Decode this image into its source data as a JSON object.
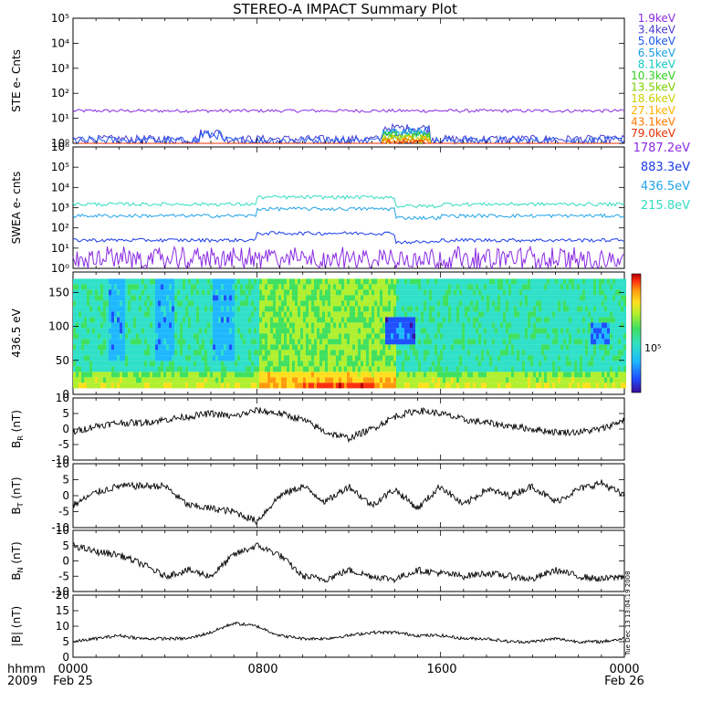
{
  "title": "STEREO-A IMPACT Summary Plot",
  "side_stamp": "Tue Dec 13 13:04:19 2008",
  "x_axis": {
    "row1_label": "hhmm",
    "row2_label": "2009",
    "ticks": [
      {
        "hhmm": "0000",
        "date": "Feb 25"
      },
      {
        "hhmm": "0800",
        "date": ""
      },
      {
        "hhmm": "1600",
        "date": ""
      },
      {
        "hhmm": "0000",
        "date": "Feb 26"
      }
    ]
  },
  "colors": {
    "ste": [
      "#8a2be2",
      "#4b3fd0",
      "#1f5bf0",
      "#1a9fe0",
      "#16c8c0",
      "#30d020",
      "#7ad000",
      "#c8d000",
      "#ffb000",
      "#ff7a00",
      "#e83000"
    ],
    "swea": [
      "#8a2be2",
      "#1a3ce8",
      "#21a3e6",
      "#32dcc0"
    ],
    "colorbar": [
      "#3a0e9a",
      "#1f50ff",
      "#1fb8ff",
      "#30e0c8",
      "#40e060",
      "#b0f030",
      "#ffe020",
      "#ff9a10",
      "#ff3010",
      "#b00000"
    ]
  },
  "chart_data": [
    {
      "type": "line",
      "panel": "ste",
      "ylabel": "STE e- Cnts",
      "yscale": "log",
      "ylim": [
        1,
        100000
      ],
      "yticks": [
        "10⁰",
        "10¹",
        "10²",
        "10³",
        "10⁴",
        "10⁵"
      ],
      "legend_placement": "right",
      "series": [
        {
          "name": "1.9keV",
          "level": 20
        },
        {
          "name": "3.4keV",
          "level": 1.5
        },
        {
          "name": "5.0keV",
          "level": 1.3
        },
        {
          "name": "6.5keV",
          "level": 1.2
        },
        {
          "name": "8.1keV",
          "level": 1.1
        },
        {
          "name": "10.3keV",
          "level": 1.05
        },
        {
          "name": "13.5keV",
          "level": 1.0
        },
        {
          "name": "18.6keV",
          "level": 1.0
        },
        {
          "name": "27.1keV",
          "level": 1.0
        },
        {
          "name": "43.1keV",
          "level": 1.0
        },
        {
          "name": "79.0keV",
          "level": 1.0
        }
      ]
    },
    {
      "type": "line",
      "panel": "swea",
      "ylabel": "SWEA e- cnts",
      "yscale": "log",
      "ylim": [
        1,
        1000000
      ],
      "yticks": [
        "10⁰",
        "10¹",
        "10²",
        "10³",
        "10⁴",
        "10⁵",
        "10⁶"
      ],
      "legend_placement": "right",
      "series": [
        {
          "name": "1787.2eV",
          "level": 3
        },
        {
          "name": "883.3eV",
          "level": 25
        },
        {
          "name": "436.5eV",
          "level": 400
        },
        {
          "name": "215.8eV",
          "level": 1500
        }
      ]
    },
    {
      "type": "heatmap",
      "panel": "pad",
      "ylabel": "436.5 eV",
      "ylim": [
        0,
        180
      ],
      "yticks": [
        "0",
        "50",
        "100",
        "150"
      ],
      "colorbar_label": "10⁵"
    },
    {
      "type": "line",
      "panel": "br",
      "ylabel": "B<sub>R</sub> (nT)",
      "ylabel_main": "B",
      "ylabel_sub": "R",
      "ylabel_unit": "(nT)",
      "ylim": [
        -10,
        10
      ],
      "yticks": [
        "-10",
        "-5",
        "0",
        "5",
        "10"
      ],
      "x_hours": [
        0,
        1,
        2,
        3,
        4,
        5,
        6,
        7,
        8,
        9,
        10,
        11,
        12,
        13,
        14,
        15,
        16,
        17,
        18,
        19,
        20,
        21,
        22,
        23,
        24
      ],
      "values": [
        -1,
        1,
        2,
        2,
        3,
        4,
        5,
        4,
        6,
        5,
        3,
        -1,
        -3,
        0,
        4,
        6,
        5,
        3,
        2,
        1,
        0,
        -1,
        -1,
        0,
        3
      ]
    },
    {
      "type": "line",
      "panel": "bt",
      "ylabel_main": "B",
      "ylabel_sub": "T",
      "ylabel_unit": "(nT)",
      "ylim": [
        -10,
        10
      ],
      "yticks": [
        "-10",
        "-5",
        "0",
        "5",
        "10"
      ],
      "x_hours": [
        0,
        1,
        2,
        3,
        4,
        5,
        6,
        7,
        8,
        9,
        10,
        11,
        12,
        13,
        14,
        15,
        16,
        17,
        18,
        19,
        20,
        21,
        22,
        23,
        24
      ],
      "values": [
        -3,
        1,
        3,
        3,
        3,
        -3,
        -4,
        -5,
        -8,
        0,
        3,
        -2,
        3,
        -3,
        2,
        -4,
        3,
        -3,
        2,
        0,
        3,
        -2,
        2,
        4,
        0
      ]
    },
    {
      "type": "line",
      "panel": "bn",
      "ylabel_main": "B",
      "ylabel_sub": "N",
      "ylabel_unit": "(nT)",
      "ylim": [
        -10,
        10
      ],
      "yticks": [
        "-10",
        "-5",
        "0",
        "5",
        "10"
      ],
      "x_hours": [
        0,
        1,
        2,
        3,
        4,
        5,
        6,
        7,
        8,
        9,
        10,
        11,
        12,
        13,
        14,
        15,
        16,
        17,
        18,
        19,
        20,
        21,
        22,
        23,
        24
      ],
      "values": [
        5,
        3,
        2,
        -1,
        -5,
        -3,
        -5,
        2,
        5,
        2,
        -5,
        -6,
        -3,
        -5,
        -6,
        -3,
        -4,
        -5,
        -4,
        -5,
        -6,
        -3,
        -5,
        -6,
        -5
      ]
    },
    {
      "type": "line",
      "panel": "bmag",
      "ylabel": "|B| (nT)",
      "ylim": [
        0,
        20
      ],
      "yticks": [
        "0",
        "5",
        "10",
        "15",
        "20"
      ],
      "x_hours": [
        0,
        1,
        2,
        3,
        4,
        5,
        6,
        7,
        8,
        9,
        10,
        11,
        12,
        13,
        14,
        15,
        16,
        17,
        18,
        19,
        20,
        21,
        22,
        23,
        24
      ],
      "values": [
        5,
        6,
        7,
        6,
        6,
        6,
        8,
        11,
        10,
        7,
        6,
        6,
        7,
        8,
        8,
        7,
        7,
        6,
        6,
        5,
        5,
        6,
        5,
        5,
        6
      ]
    }
  ]
}
